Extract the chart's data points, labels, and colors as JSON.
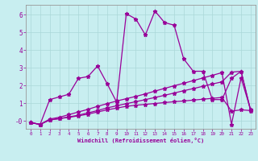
{
  "xlabel": "Windchill (Refroidissement éolien,°C)",
  "bg_color": "#c8eef0",
  "line_color": "#990099",
  "grid_color": "#aad8d8",
  "ylim": [
    -0.45,
    6.55
  ],
  "xlim": [
    -0.5,
    23.5
  ],
  "yticks": [
    0,
    1,
    2,
    3,
    4,
    5,
    6
  ],
  "ytick_labels": [
    "-0",
    "1",
    "2",
    "3",
    "4",
    "5",
    "6"
  ],
  "xticks": [
    0,
    1,
    2,
    3,
    4,
    5,
    6,
    7,
    8,
    9,
    10,
    11,
    12,
    13,
    14,
    15,
    16,
    17,
    18,
    19,
    20,
    21,
    22,
    23
  ],
  "line1_x": [
    0,
    1,
    2,
    3,
    4,
    5,
    6,
    7,
    8,
    9,
    10,
    11,
    12,
    13,
    14,
    15,
    16,
    17,
    18,
    19,
    20,
    21,
    22,
    23
  ],
  "line1_y": [
    -0.1,
    -0.2,
    1.2,
    1.35,
    1.5,
    2.4,
    2.5,
    3.1,
    2.1,
    1.05,
    6.05,
    5.75,
    4.85,
    6.2,
    5.55,
    5.4,
    3.5,
    2.8,
    2.8,
    1.2,
    1.2,
    2.4,
    2.8,
    0.55
  ],
  "line2_x": [
    0,
    1,
    2,
    3,
    4,
    5,
    6,
    7,
    8,
    9,
    10,
    11,
    12,
    13,
    14,
    15,
    16,
    17,
    18,
    19,
    20,
    21,
    22,
    23
  ],
  "line2_y": [
    -0.1,
    -0.2,
    0.05,
    0.12,
    0.2,
    0.28,
    0.38,
    0.5,
    0.62,
    0.72,
    0.82,
    0.88,
    0.93,
    0.98,
    1.03,
    1.08,
    1.12,
    1.17,
    1.22,
    1.27,
    1.32,
    0.55,
    0.62,
    0.58
  ],
  "line3_x": [
    0,
    1,
    2,
    3,
    4,
    5,
    6,
    7,
    8,
    9,
    10,
    11,
    12,
    13,
    14,
    15,
    16,
    17,
    18,
    19,
    20,
    21,
    22,
    23
  ],
  "line3_y": [
    -0.1,
    -0.2,
    0.05,
    0.13,
    0.22,
    0.32,
    0.45,
    0.58,
    0.73,
    0.85,
    0.97,
    1.08,
    1.2,
    1.32,
    1.44,
    1.57,
    1.7,
    1.82,
    1.95,
    2.08,
    2.2,
    2.75,
    2.8,
    0.6
  ],
  "line4_x": [
    0,
    1,
    2,
    3,
    4,
    5,
    6,
    7,
    8,
    9,
    10,
    11,
    12,
    13,
    14,
    15,
    16,
    17,
    18,
    19,
    20,
    21,
    22,
    23
  ],
  "line4_y": [
    -0.1,
    -0.2,
    0.1,
    0.2,
    0.35,
    0.5,
    0.65,
    0.82,
    0.97,
    1.12,
    1.25,
    1.38,
    1.52,
    1.68,
    1.83,
    1.98,
    2.12,
    2.27,
    2.42,
    2.57,
    2.72,
    -0.2,
    2.42,
    0.62
  ]
}
